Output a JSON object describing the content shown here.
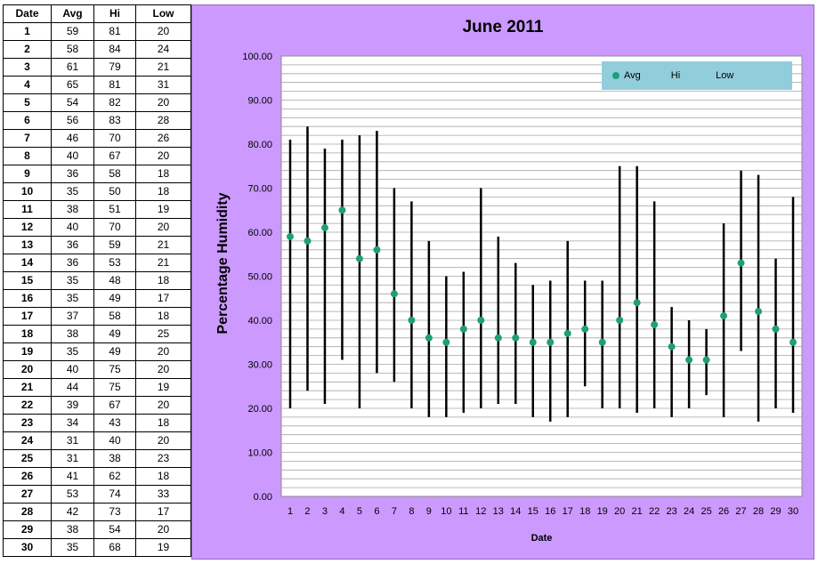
{
  "table": {
    "headers": [
      "Date",
      "Avg",
      "Hi",
      "Low"
    ],
    "rows": [
      [
        "1",
        "59",
        "81",
        "20"
      ],
      [
        "2",
        "58",
        "84",
        "24"
      ],
      [
        "3",
        "61",
        "79",
        "21"
      ],
      [
        "4",
        "65",
        "81",
        "31"
      ],
      [
        "5",
        "54",
        "82",
        "20"
      ],
      [
        "6",
        "56",
        "83",
        "28"
      ],
      [
        "7",
        "46",
        "70",
        "26"
      ],
      [
        "8",
        "40",
        "67",
        "20"
      ],
      [
        "9",
        "36",
        "58",
        "18"
      ],
      [
        "10",
        "35",
        "50",
        "18"
      ],
      [
        "11",
        "38",
        "51",
        "19"
      ],
      [
        "12",
        "40",
        "70",
        "20"
      ],
      [
        "13",
        "36",
        "59",
        "21"
      ],
      [
        "14",
        "36",
        "53",
        "21"
      ],
      [
        "15",
        "35",
        "48",
        "18"
      ],
      [
        "16",
        "35",
        "49",
        "17"
      ],
      [
        "17",
        "37",
        "58",
        "18"
      ],
      [
        "18",
        "38",
        "49",
        "25"
      ],
      [
        "19",
        "35",
        "49",
        "20"
      ],
      [
        "20",
        "40",
        "75",
        "20"
      ],
      [
        "21",
        "44",
        "75",
        "19"
      ],
      [
        "22",
        "39",
        "67",
        "20"
      ],
      [
        "23",
        "34",
        "43",
        "18"
      ],
      [
        "24",
        "31",
        "40",
        "20"
      ],
      [
        "25",
        "31",
        "38",
        "23"
      ],
      [
        "26",
        "41",
        "62",
        "18"
      ],
      [
        "27",
        "53",
        "74",
        "33"
      ],
      [
        "28",
        "42",
        "73",
        "17"
      ],
      [
        "29",
        "38",
        "54",
        "20"
      ],
      [
        "30",
        "35",
        "68",
        "19"
      ]
    ]
  },
  "chart_data": {
    "type": "scatter",
    "title": "June 2011",
    "xlabel": "Date",
    "ylabel": "Percentage Humidity",
    "x": [
      1,
      2,
      3,
      4,
      5,
      6,
      7,
      8,
      9,
      10,
      11,
      12,
      13,
      14,
      15,
      16,
      17,
      18,
      19,
      20,
      21,
      22,
      23,
      24,
      25,
      26,
      27,
      28,
      29,
      30
    ],
    "series": [
      {
        "name": "Avg",
        "values": [
          59,
          58,
          61,
          65,
          54,
          56,
          46,
          40,
          36,
          35,
          38,
          40,
          36,
          36,
          35,
          35,
          37,
          38,
          35,
          40,
          44,
          39,
          34,
          31,
          31,
          41,
          53,
          42,
          38,
          35
        ]
      },
      {
        "name": "Hi",
        "values": [
          81,
          84,
          79,
          81,
          82,
          83,
          70,
          67,
          58,
          50,
          51,
          70,
          59,
          53,
          48,
          49,
          58,
          49,
          49,
          75,
          75,
          67,
          43,
          40,
          38,
          62,
          74,
          73,
          54,
          68
        ]
      },
      {
        "name": "Low",
        "values": [
          20,
          24,
          21,
          31,
          20,
          28,
          26,
          20,
          18,
          18,
          19,
          20,
          21,
          21,
          18,
          17,
          18,
          25,
          20,
          20,
          19,
          20,
          18,
          20,
          23,
          18,
          33,
          17,
          20,
          19
        ]
      }
    ],
    "ylim": [
      0,
      100
    ],
    "yticks": [
      "0.00",
      "10.00",
      "20.00",
      "30.00",
      "40.00",
      "50.00",
      "60.00",
      "70.00",
      "80.00",
      "90.00",
      "100.00"
    ],
    "grid": true,
    "legend_position": "top-right",
    "colors": {
      "panel": "#cc99ff",
      "plot": "#ffffff",
      "marker": "#1f9e7a",
      "bar": "#000000",
      "legend_bg": "#92cddc",
      "grid": "#a6a6a6"
    }
  }
}
